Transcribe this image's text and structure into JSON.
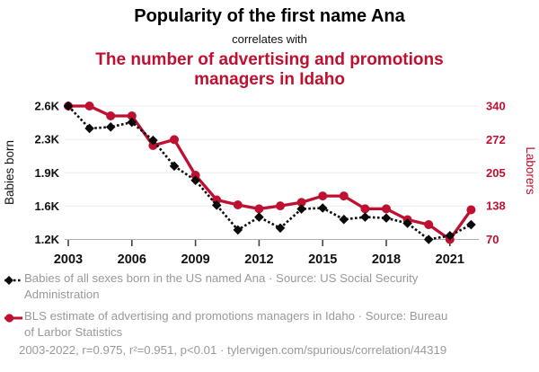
{
  "header": {
    "title": "Popularity of the first name Ana",
    "connector": "correlates with",
    "subtitle": "The number of advertising and promotions managers in Idaho"
  },
  "colors": {
    "accent": "#be1030",
    "series_black": "#0b0b0b",
    "muted_text": "#999999",
    "gridline": "#ececec",
    "axis_line": "#b0b0b0",
    "tick_mark": "#444444"
  },
  "chart_data": {
    "type": "line",
    "x": [
      2003,
      2004,
      2005,
      2006,
      2007,
      2008,
      2009,
      2010,
      2011,
      2012,
      2013,
      2014,
      2015,
      2016,
      2017,
      2018,
      2019,
      2020,
      2021,
      2022
    ],
    "x_tick_labels": [
      "2003",
      "2006",
      "2009",
      "2012",
      "2015",
      "2018",
      "2021"
    ],
    "left_axis": {
      "label": "Babies born",
      "tick_labels": [
        "2.6K",
        "2.3K",
        "1.9K",
        "1.6K",
        "1.2K"
      ],
      "tick_values": [
        2600,
        2250,
        1900,
        1550,
        1200
      ],
      "range": [
        1200,
        2600
      ]
    },
    "right_axis": {
      "label": "Laborers",
      "tick_labels": [
        "340",
        "272",
        "205",
        "138",
        "70"
      ],
      "tick_values": [
        340,
        272,
        205,
        138,
        70
      ],
      "range": [
        70,
        340
      ]
    },
    "grid": "horizontal",
    "legend_position": "below",
    "series": [
      {
        "name": "Babies of all sexes born in the US named Ana",
        "axis": "left",
        "color": "#0b0b0b",
        "marker": "diamond",
        "line_style": "dashed",
        "values": [
          2600,
          2365,
          2380,
          2430,
          2240,
          1970,
          1820,
          1560,
          1300,
          1435,
          1320,
          1520,
          1530,
          1410,
          1435,
          1425,
          1370,
          1200,
          1240,
          1355
        ]
      },
      {
        "name": "BLS estimate of advertising and promotions managers in Idaho",
        "axis": "right",
        "color": "#be1030",
        "marker": "circle",
        "line_style": "solid",
        "values": [
          340,
          340,
          320,
          320,
          260,
          272,
          200,
          150,
          140,
          132,
          138,
          145,
          158,
          158,
          132,
          132,
          110,
          100,
          70,
          130
        ]
      }
    ]
  },
  "legend": [
    {
      "marker": "black-diamond-dashed",
      "label": "Babies of all sexes born in the US named Ana · Source: US Social Security Administration"
    },
    {
      "marker": "red-circle-line",
      "label": "BLS estimate of advertising and promotions managers in Idaho · Source: Bureau of Larbor Statistics"
    }
  ],
  "footer": {
    "stats": "2003-2022, r=0.975, r²=0.951, p<0.01 · tylervigen.com/spurious/correlation/44319"
  }
}
